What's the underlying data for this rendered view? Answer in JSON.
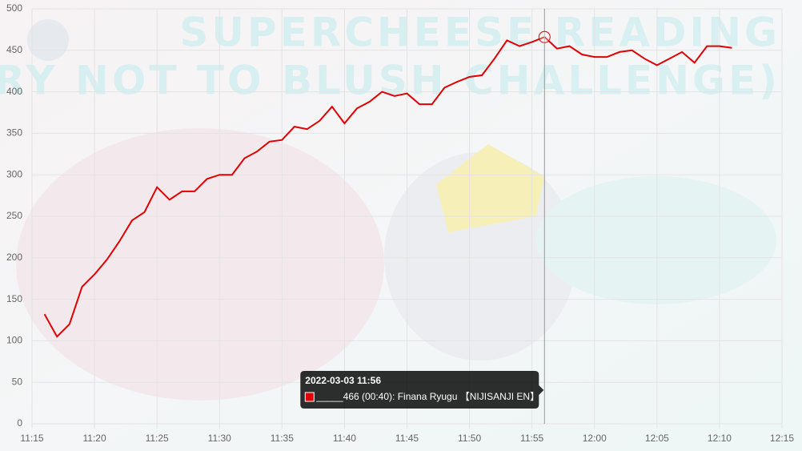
{
  "chart_data": {
    "type": "line",
    "background_text": [
      "SUPERCHEESE READING",
      "(TRY NOT TO BLUSH CHALLENGE)"
    ],
    "x": [
      "11:16",
      "11:17",
      "11:18",
      "11:19",
      "11:20",
      "11:21",
      "11:22",
      "11:23",
      "11:24",
      "11:25",
      "11:26",
      "11:27",
      "11:28",
      "11:29",
      "11:30",
      "11:31",
      "11:32",
      "11:33",
      "11:34",
      "11:35",
      "11:36",
      "11:37",
      "11:38",
      "11:39",
      "11:40",
      "11:41",
      "11:42",
      "11:43",
      "11:44",
      "11:45",
      "11:46",
      "11:47",
      "11:48",
      "11:49",
      "11:50",
      "11:51",
      "11:52",
      "11:53",
      "11:54",
      "11:55",
      "11:56",
      "11:57",
      "11:58",
      "11:59",
      "12:00",
      "12:01",
      "12:02",
      "12:03",
      "12:04",
      "12:05",
      "12:06",
      "12:07",
      "12:08",
      "12:09",
      "12:10",
      "12:11"
    ],
    "series": [
      {
        "color": "#e00000",
        "values": [
          132,
          105,
          120,
          165,
          180,
          198,
          220,
          245,
          255,
          285,
          270,
          280,
          280,
          295,
          300,
          300,
          320,
          328,
          340,
          342,
          358,
          355,
          365,
          382,
          362,
          380,
          388,
          400,
          395,
          398,
          385,
          385,
          405,
          412,
          418,
          420,
          440,
          462,
          455,
          460,
          466,
          452,
          455,
          445,
          442,
          442,
          448,
          450,
          440,
          432,
          440,
          448,
          435,
          455,
          455,
          453
        ]
      }
    ],
    "xlim": [
      "11:15",
      "12:15"
    ],
    "xticks": [
      "11:15",
      "11:20",
      "11:25",
      "11:30",
      "11:35",
      "11:40",
      "11:45",
      "11:50",
      "11:55",
      "12:00",
      "12:05",
      "12:10",
      "12:15"
    ],
    "ylim": [
      0,
      500
    ],
    "yticks": [
      0,
      50,
      100,
      150,
      200,
      250,
      300,
      350,
      400,
      450,
      500
    ],
    "grid": true,
    "tooltip": {
      "title": "2022-03-03 11:56",
      "text": "_____466 (00:40): Finana Ryugu 【NIJISANJI EN】"
    }
  }
}
